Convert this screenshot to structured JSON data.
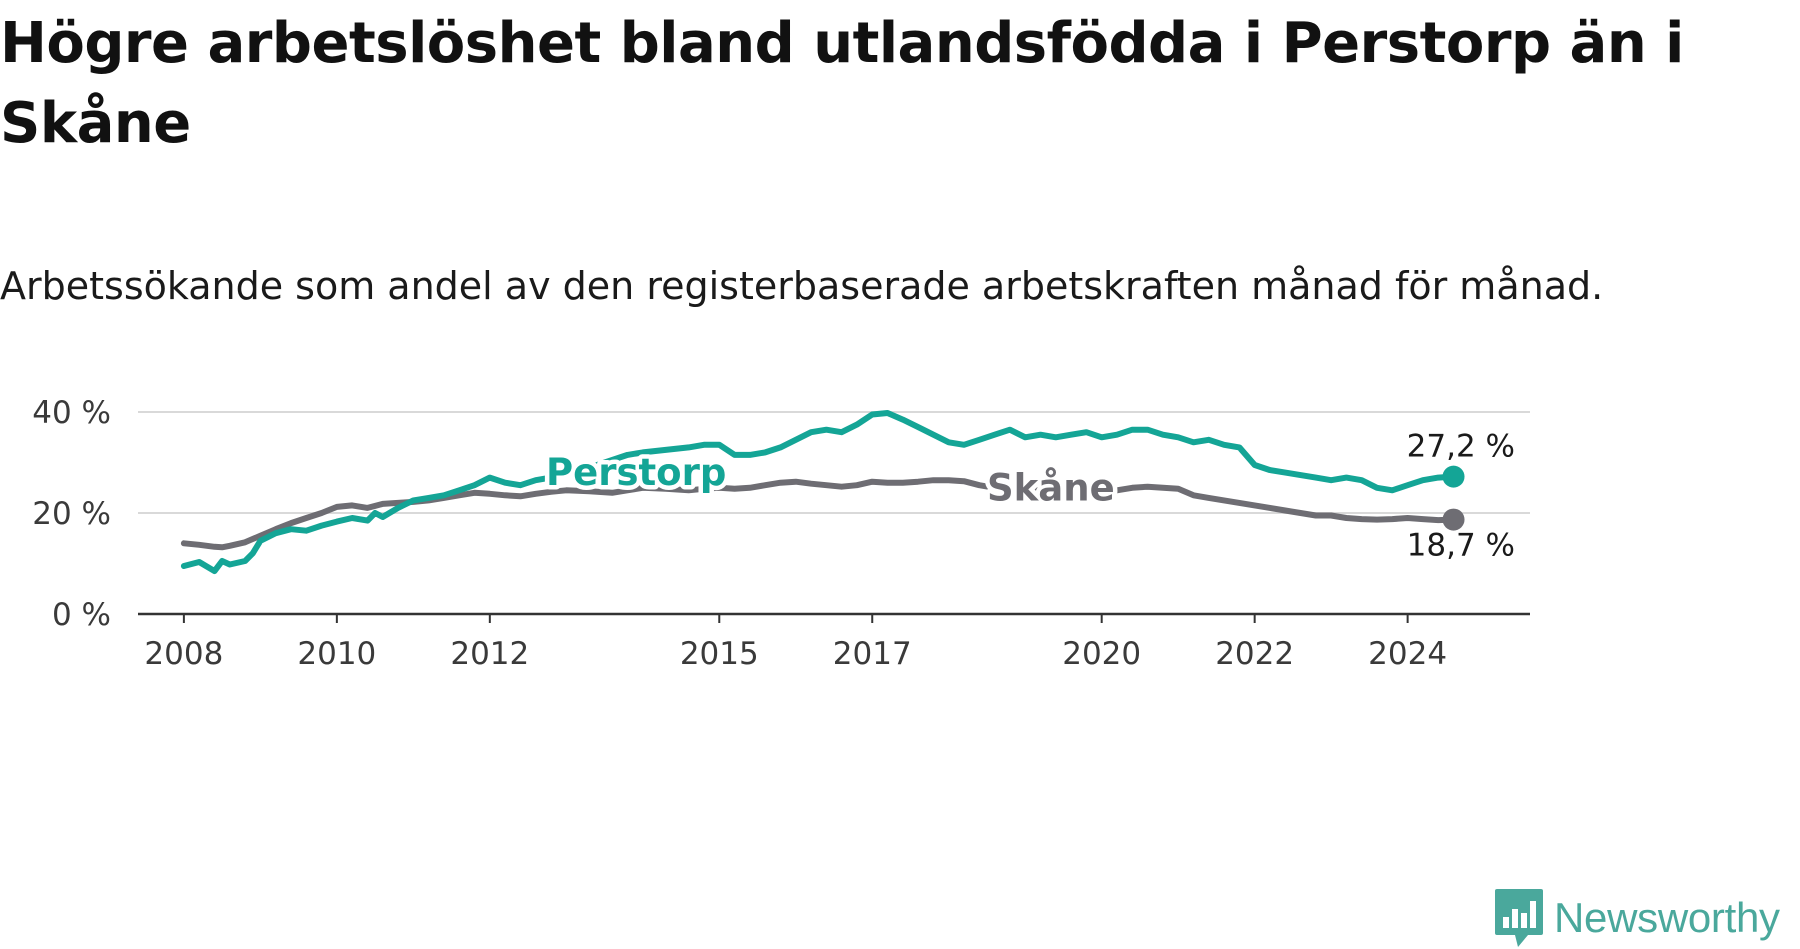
{
  "header": {
    "title": "Högre arbetslöshet bland utlandsfödda i Perstorp än i Skåne",
    "subtitle": "Arbetssökande som andel av den registerbaserade arbetskraften månad för månad."
  },
  "brand": {
    "name": "Newsworthy",
    "color": "#4aa89c"
  },
  "chart_data": {
    "type": "line",
    "title": "Högre arbetslöshet bland utlandsfödda i Perstorp än i Skåne",
    "subtitle": "Arbetssökande som andel av den registerbaserade arbetskraften månad för månad.",
    "xlabel": "",
    "ylabel": "",
    "xlim": [
      2007.4,
      2025.6
    ],
    "ylim": [
      0,
      40
    ],
    "grid": true,
    "x_ticks": [
      2008,
      2010,
      2012,
      2015,
      2017,
      2020,
      2022,
      2024
    ],
    "x_tick_labels": [
      "2008",
      "2010",
      "2012",
      "2015",
      "2017",
      "2020",
      "2022",
      "2024"
    ],
    "y_ticks": [
      0,
      20,
      40
    ],
    "y_tick_labels": [
      "0 %",
      "20 %",
      "40 %"
    ],
    "series": [
      {
        "name": "Perstorp",
        "label": "Perstorp",
        "color": "#14a596",
        "end_label": "27,2 %",
        "x": [
          2008.0,
          2008.2,
          2008.4,
          2008.5,
          2008.6,
          2008.8,
          2008.9,
          2009.0,
          2009.2,
          2009.4,
          2009.6,
          2009.8,
          2010.0,
          2010.2,
          2010.4,
          2010.5,
          2010.6,
          2010.8,
          2011.0,
          2011.2,
          2011.4,
          2011.6,
          2011.8,
          2012.0,
          2012.2,
          2012.4,
          2012.6,
          2012.8,
          2013.0,
          2013.3,
          2013.6,
          2013.8,
          2014.0,
          2014.3,
          2014.6,
          2014.8,
          2015.0,
          2015.2,
          2015.4,
          2015.6,
          2015.8,
          2016.0,
          2016.2,
          2016.4,
          2016.6,
          2016.8,
          2017.0,
          2017.2,
          2017.4,
          2017.6,
          2017.8,
          2018.0,
          2018.2,
          2018.4,
          2018.6,
          2018.8,
          2019.0,
          2019.2,
          2019.4,
          2019.6,
          2019.8,
          2020.0,
          2020.2,
          2020.4,
          2020.6,
          2020.8,
          2021.0,
          2021.2,
          2021.4,
          2021.6,
          2021.8,
          2022.0,
          2022.2,
          2022.4,
          2022.6,
          2022.8,
          2023.0,
          2023.2,
          2023.4,
          2023.6,
          2023.8,
          2024.0,
          2024.2,
          2024.4,
          2024.6
        ],
        "values": [
          9.5,
          10.3,
          8.5,
          10.5,
          9.8,
          10.5,
          12.0,
          14.5,
          16.0,
          16.8,
          16.5,
          17.5,
          18.3,
          19.0,
          18.5,
          20.0,
          19.2,
          21.0,
          22.5,
          23.0,
          23.5,
          24.5,
          25.5,
          27.0,
          26.0,
          25.5,
          26.5,
          27.0,
          27.5,
          29.0,
          30.5,
          31.5,
          32.0,
          32.5,
          33.0,
          33.5,
          33.5,
          31.5,
          31.5,
          32.0,
          33.0,
          34.5,
          36.0,
          36.5,
          36.0,
          37.5,
          39.5,
          39.8,
          38.5,
          37.0,
          35.5,
          34.0,
          33.5,
          34.5,
          35.5,
          36.5,
          35.0,
          35.5,
          35.0,
          35.5,
          36.0,
          35.0,
          35.5,
          36.5,
          36.5,
          35.5,
          35.0,
          34.0,
          34.5,
          33.5,
          33.0,
          29.5,
          28.5,
          28.0,
          27.5,
          27.0,
          26.5,
          27.0,
          26.5,
          25.0,
          24.5,
          25.5,
          26.5,
          27.0,
          27.2
        ]
      },
      {
        "name": "Skåne",
        "label": "Skåne",
        "color": "#6e6d73",
        "end_label": "18,7 %",
        "x": [
          2008.0,
          2008.2,
          2008.4,
          2008.5,
          2008.6,
          2008.8,
          2009.0,
          2009.2,
          2009.4,
          2009.6,
          2009.8,
          2010.0,
          2010.2,
          2010.4,
          2010.6,
          2010.8,
          2011.0,
          2011.2,
          2011.4,
          2011.6,
          2011.8,
          2012.0,
          2012.2,
          2012.4,
          2012.6,
          2012.8,
          2013.0,
          2013.3,
          2013.6,
          2013.8,
          2014.0,
          2014.3,
          2014.6,
          2014.8,
          2015.0,
          2015.2,
          2015.4,
          2015.6,
          2015.8,
          2016.0,
          2016.2,
          2016.4,
          2016.6,
          2016.8,
          2017.0,
          2017.2,
          2017.4,
          2017.6,
          2017.8,
          2018.0,
          2018.2,
          2018.4,
          2018.6,
          2018.8,
          2019.0,
          2019.2,
          2019.4,
          2019.6,
          2019.8,
          2020.0,
          2020.2,
          2020.4,
          2020.6,
          2020.8,
          2021.0,
          2021.2,
          2021.4,
          2021.6,
          2021.8,
          2022.0,
          2022.2,
          2022.4,
          2022.6,
          2022.8,
          2023.0,
          2023.2,
          2023.4,
          2023.6,
          2023.8,
          2024.0,
          2024.2,
          2024.4,
          2024.6
        ],
        "values": [
          14.0,
          13.7,
          13.3,
          13.2,
          13.5,
          14.2,
          15.5,
          16.8,
          18.0,
          19.0,
          20.0,
          21.2,
          21.5,
          21.0,
          21.8,
          22.0,
          22.2,
          22.5,
          23.0,
          23.5,
          24.0,
          23.8,
          23.5,
          23.3,
          23.8,
          24.2,
          24.5,
          24.3,
          24.0,
          24.5,
          25.0,
          24.8,
          24.5,
          24.8,
          25.0,
          24.8,
          25.0,
          25.5,
          26.0,
          26.2,
          25.8,
          25.5,
          25.2,
          25.5,
          26.2,
          26.0,
          26.0,
          26.2,
          26.5,
          26.5,
          26.3,
          25.5,
          25.0,
          24.8,
          24.5,
          24.5,
          24.2,
          24.0,
          24.3,
          24.0,
          24.5,
          25.0,
          25.2,
          25.0,
          24.8,
          23.5,
          23.0,
          22.5,
          22.0,
          21.5,
          21.0,
          20.5,
          20.0,
          19.5,
          19.5,
          19.0,
          18.8,
          18.7,
          18.8,
          19.0,
          18.8,
          18.6,
          18.7
        ]
      }
    ]
  }
}
